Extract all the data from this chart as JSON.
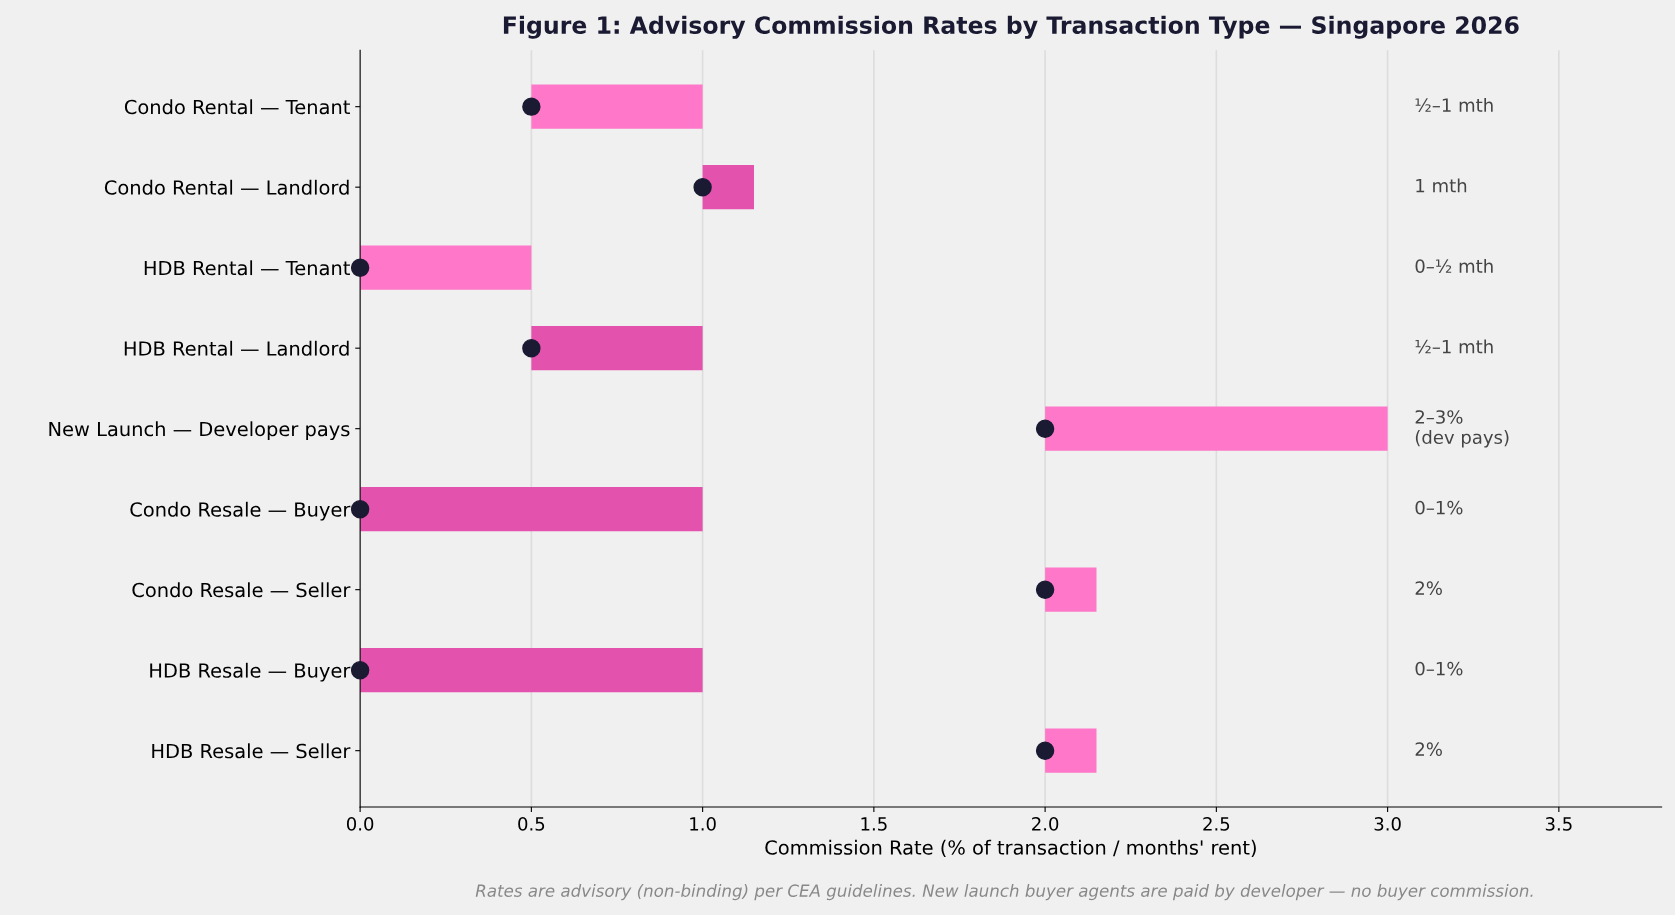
{
  "chart_data": {
    "type": "bar",
    "orientation": "horizontal",
    "title": "Figure 1: Advisory Commission Rates by Transaction Type — Singapore 2026",
    "xlabel": "Commission Rate (% of transaction / months' rent)",
    "categories": [
      "Condo Rental — Tenant",
      "Condo Rental — Landlord",
      "HDB Rental — Tenant",
      "HDB Rental — Landlord",
      "New Launch — Developer pays",
      "Condo Resale — Buyer",
      "Condo Resale — Seller",
      "HDB Resale — Buyer",
      "HDB Resale — Seller"
    ],
    "series": [
      {
        "base": [
          0.5,
          1.0,
          0,
          0.5,
          2.0,
          0,
          2.0,
          0,
          2.0
        ],
        "values": [
          0.5,
          0.15,
          0.5,
          0.5,
          1.0,
          1.0,
          0.15,
          1.0,
          0.15
        ],
        "colors": [
          "#ff77c8",
          "#e352ad",
          "#ff77c8",
          "#e352ad",
          "#ff77c8",
          "#e352ad",
          "#ff77c8",
          "#e352ad",
          "#ff77c8"
        ]
      },
      {
        "type": "scatter",
        "color": "#1a1a33",
        "marker": "circle",
        "values": [
          0.5,
          1.0,
          0,
          0.5,
          2.0,
          0,
          2.0,
          0,
          2.0
        ]
      }
    ],
    "xlim": [
      0,
      3.8
    ],
    "xticks": [
      {
        "value": 0,
        "label": "0.0"
      },
      0.5,
      {
        "value": 1,
        "label": "1.0"
      },
      1.5,
      {
        "value": 2,
        "label": "2.0"
      },
      2.5,
      {
        "value": 3,
        "label": "3.0"
      },
      3.5
    ],
    "grid": "x",
    "annotations": [
      "½–1 mth",
      "1 mth",
      "0–½ mth",
      "½–1 mth",
      "2–3%\n(dev pays)",
      "0–1%",
      "2%",
      "0–1%",
      "2%",
      "Rates are advisory (non-binding) per CEA guidelines. New launch buyer agents are paid by developer — no buyer commission."
    ]
  }
}
